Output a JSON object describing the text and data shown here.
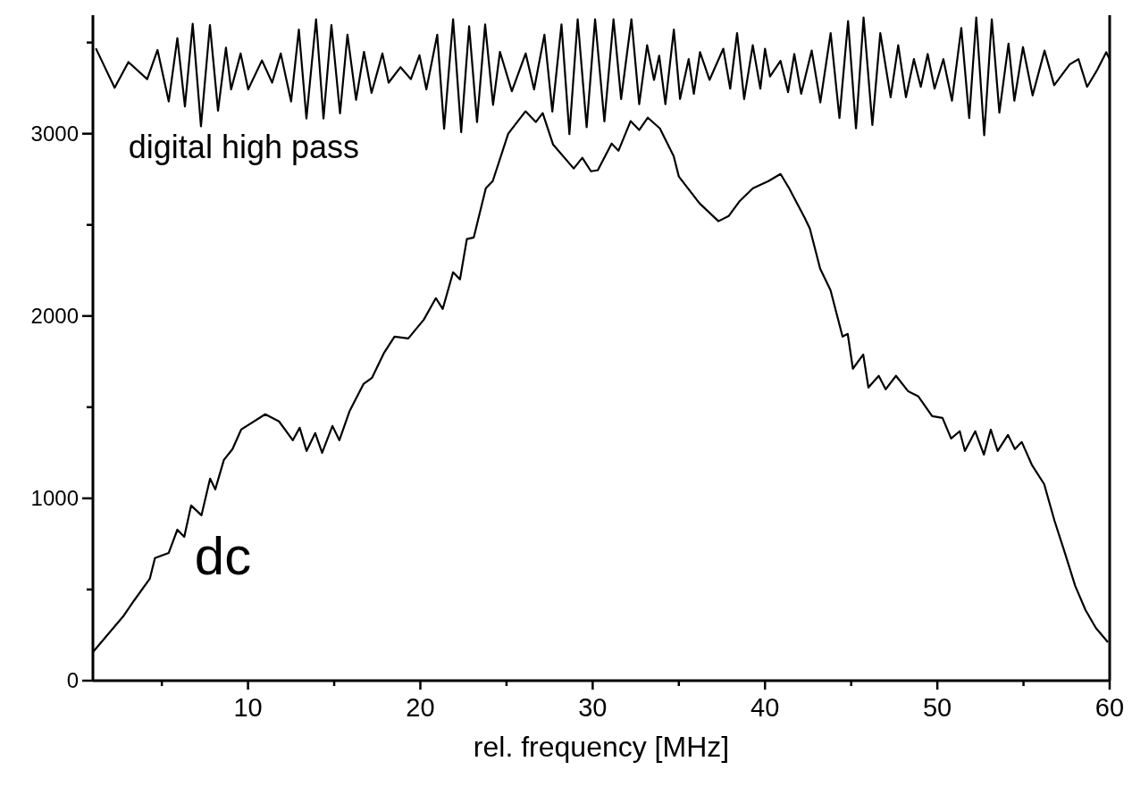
{
  "chart_data": {
    "type": "line",
    "xlabel": "rel. frequency [MHz]",
    "xlim": [
      1,
      60
    ],
    "xticks": [
      {
        "value": 5,
        "label": null
      },
      10,
      {
        "value": 15,
        "label": null
      },
      20,
      {
        "value": 25,
        "label": null
      },
      30,
      {
        "value": 35,
        "label": null
      },
      40,
      {
        "value": 45,
        "label": null
      },
      50,
      {
        "value": 55,
        "label": null
      },
      60
    ],
    "ylim": [
      0,
      3650
    ],
    "yticks": [
      0,
      {
        "value": 500,
        "label": null
      },
      1000,
      {
        "value": 1500,
        "label": null
      },
      2000,
      {
        "value": 2500,
        "label": null
      },
      3000,
      {
        "value": 3500,
        "label": null
      }
    ],
    "grid": false,
    "marker": "none",
    "line_style": "solid",
    "series": [
      {
        "name": "dc",
        "color": "#000000",
        "x": [
          1,
          2.8,
          3.4,
          4.3,
          4.6,
          5.4,
          5.9,
          6.3,
          6.7,
          7.3,
          7.8,
          8.1,
          8.6,
          9.1,
          9.6,
          11.0,
          11.8,
          12.6,
          13.0,
          13.4,
          13.9,
          14.3,
          14.9,
          15.3,
          15.9,
          16.7,
          17.2,
          17.9,
          18.5,
          19.3,
          20.2,
          20.9,
          21.3,
          21.9,
          22.3,
          22.7,
          23.1,
          23.8,
          24.2,
          25.1,
          26.1,
          26.7,
          27.1,
          27.7,
          28.9,
          29.4,
          29.9,
          30.3,
          31.1,
          31.5,
          32.2,
          32.7,
          33.2,
          33.9,
          34.7,
          35.0,
          36.2,
          37.3,
          37.9,
          38.5,
          39.3,
          40.2,
          40.9,
          41.4,
          42.3,
          42.6,
          43.2,
          43.8,
          44.5,
          44.8,
          45.1,
          45.7,
          46.0,
          46.6,
          47.0,
          47.6,
          48.3,
          48.9,
          49.7,
          50.3,
          50.8,
          51.3,
          51.6,
          52.2,
          52.7,
          53.1,
          53.5,
          54.1,
          54.5,
          54.9,
          55.5,
          56.2,
          56.8,
          57.4,
          58.0,
          58.6,
          59.2,
          59.9
        ],
        "values": [
          157,
          358,
          441,
          559,
          672,
          701,
          828,
          789,
          961,
          907,
          1108,
          1049,
          1211,
          1270,
          1377,
          1461,
          1422,
          1319,
          1387,
          1260,
          1358,
          1250,
          1397,
          1319,
          1480,
          1627,
          1662,
          1799,
          1887,
          1877,
          1980,
          2098,
          2039,
          2240,
          2201,
          2422,
          2431,
          2701,
          2740,
          3000,
          3123,
          3064,
          3113,
          2941,
          2809,
          2868,
          2794,
          2800,
          2946,
          2907,
          3069,
          3020,
          3088,
          3029,
          2877,
          2765,
          2618,
          2520,
          2549,
          2627,
          2701,
          2740,
          2779,
          2701,
          2539,
          2480,
          2260,
          2142,
          1887,
          1902,
          1711,
          1789,
          1608,
          1672,
          1598,
          1672,
          1588,
          1559,
          1451,
          1441,
          1328,
          1368,
          1260,
          1368,
          1240,
          1377,
          1260,
          1348,
          1270,
          1309,
          1181,
          1078,
          877,
          701,
          520,
          387,
          289,
          211
        ]
      },
      {
        "name": "digital high pass",
        "color": "#000000",
        "x": [
          1.17,
          2.26,
          3.06,
          4.15,
          4.75,
          5.4,
          5.9,
          6.34,
          6.79,
          7.27,
          7.79,
          8.26,
          8.72,
          9.02,
          9.57,
          10.01,
          10.81,
          11.4,
          11.9,
          12.5,
          12.95,
          13.39,
          13.95,
          14.38,
          14.84,
          15.34,
          15.77,
          16.27,
          16.73,
          17.17,
          17.8,
          18.16,
          18.85,
          19.45,
          19.95,
          20.35,
          20.98,
          21.38,
          21.9,
          22.37,
          22.83,
          23.29,
          23.76,
          24.22,
          24.62,
          25.31,
          26.11,
          26.6,
          27.2,
          27.66,
          28.19,
          28.65,
          29.13,
          29.65,
          30.14,
          30.68,
          31.21,
          31.65,
          32.25,
          32.7,
          33.16,
          33.56,
          33.86,
          34.22,
          34.71,
          35.07,
          35.57,
          35.87,
          36.23,
          36.78,
          37.58,
          37.98,
          38.38,
          38.79,
          39.29,
          39.73,
          40.0,
          40.29,
          40.9,
          41.34,
          41.7,
          42.1,
          42.71,
          43.21,
          43.81,
          44.32,
          44.82,
          45.28,
          45.72,
          46.23,
          46.69,
          47.29,
          47.73,
          48.18,
          48.64,
          49.04,
          49.44,
          49.84,
          50.35,
          50.85,
          51.39,
          51.85,
          52.26,
          52.72,
          53.16,
          53.6,
          54.13,
          54.47,
          54.97,
          55.53,
          56.22,
          56.78,
          57.68,
          58.19,
          58.69,
          59.29,
          59.8,
          60.0
        ],
        "values": [
          3468,
          3252,
          3393,
          3299,
          3459,
          3177,
          3524,
          3149,
          3603,
          3040,
          3596,
          3126,
          3472,
          3243,
          3440,
          3243,
          3402,
          3280,
          3440,
          3177,
          3571,
          3083,
          3628,
          3083,
          3596,
          3111,
          3543,
          3186,
          3449,
          3224,
          3440,
          3280,
          3365,
          3299,
          3430,
          3243,
          3543,
          3027,
          3628,
          3008,
          3590,
          3064,
          3599,
          3158,
          3449,
          3233,
          3440,
          3243,
          3543,
          3121,
          3599,
          2998,
          3628,
          3036,
          3628,
          3067,
          3628,
          3190,
          3628,
          3162,
          3485,
          3295,
          3428,
          3162,
          3571,
          3190,
          3409,
          3219,
          3447,
          3295,
          3466,
          3247,
          3552,
          3190,
          3485,
          3247,
          3466,
          3314,
          3399,
          3228,
          3437,
          3219,
          3456,
          3172,
          3552,
          3086,
          3618,
          3029,
          3637,
          3048,
          3552,
          3200,
          3485,
          3200,
          3409,
          3257,
          3437,
          3247,
          3409,
          3181,
          3580,
          3086,
          3637,
          2991,
          3628,
          3115,
          3494,
          3181,
          3475,
          3210,
          3456,
          3266,
          3380,
          3409,
          3257,
          3352,
          3447,
          3409
        ]
      }
    ]
  }
}
